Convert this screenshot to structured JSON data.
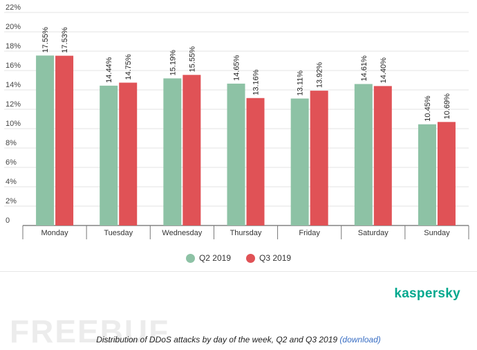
{
  "chart_data": {
    "type": "bar",
    "categories": [
      "Monday",
      "Tuesday",
      "Wednesday",
      "Thursday",
      "Friday",
      "Saturday",
      "Sunday"
    ],
    "series": [
      {
        "name": "Q2 2019",
        "values": [
          17.55,
          14.44,
          15.19,
          14.65,
          13.11,
          14.61,
          10.45
        ],
        "labels": [
          "17.55%",
          "14.44%",
          "15.19%",
          "14.65%",
          "13.11%",
          "14.61%",
          "10.45%"
        ],
        "color": "#8dc2a5"
      },
      {
        "name": "Q3 2019",
        "values": [
          17.53,
          14.75,
          15.55,
          13.16,
          13.92,
          14.4,
          10.69
        ],
        "labels": [
          "17.53%",
          "14.75%",
          "15.55%",
          "13.16%",
          "13.92%",
          "14.40%",
          "10.69%"
        ],
        "color": "#e05256"
      }
    ],
    "y_ticks": [
      "0",
      "2%",
      "4%",
      "6%",
      "8%",
      "10%",
      "12%",
      "14%",
      "16%",
      "18%",
      "20%",
      "22%"
    ],
    "ylim": [
      0,
      22
    ],
    "grid": true,
    "legend_position": "bottom"
  },
  "legend": {
    "items": [
      {
        "label": "Q2 2019",
        "color": "#8dc2a5"
      },
      {
        "label": "Q3 2019",
        "color": "#e05256"
      }
    ]
  },
  "brand": {
    "text": "kaspersky",
    "color": "#00a88e"
  },
  "watermark": {
    "text": "FREEBUF"
  },
  "caption": {
    "text": "Distribution of DDoS attacks by day of the week, Q2 and Q3 2019",
    "link": "(download)"
  }
}
